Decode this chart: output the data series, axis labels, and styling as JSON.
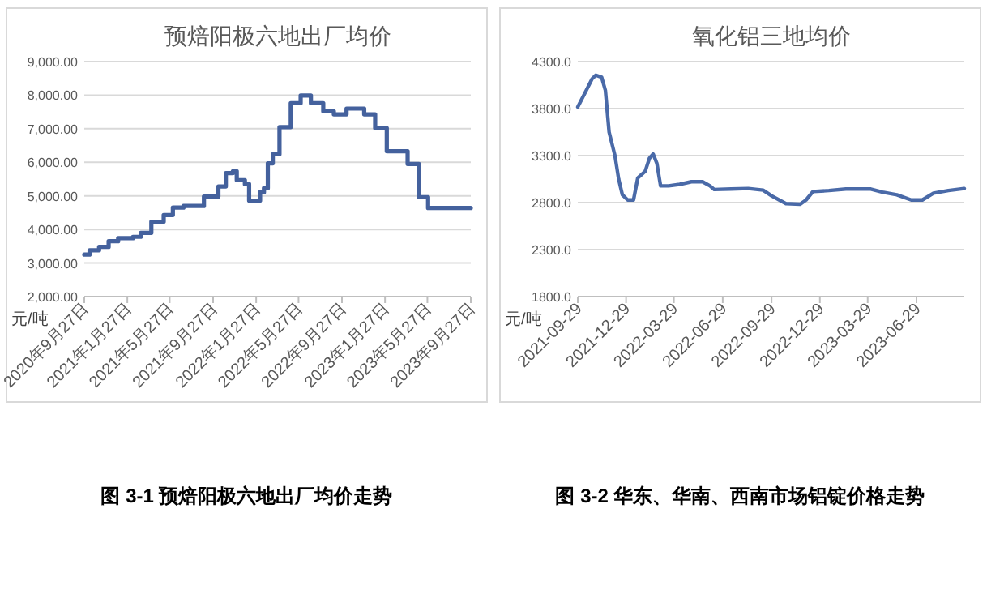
{
  "chart_data": [
    {
      "type": "step",
      "title": "预焙阳极六地出厂均价",
      "ylabel": "元/吨",
      "x": [
        "2020-09-27",
        "2020-10-12",
        "2020-11-08",
        "2020-12-05",
        "2021-01-01",
        "2021-02-12",
        "2021-03-06",
        "2021-04-05",
        "2021-05-10",
        "2021-06-05",
        "2021-07-05",
        "2021-09-01",
        "2021-10-12",
        "2021-11-02",
        "2021-11-22",
        "2021-12-03",
        "2021-12-26",
        "2022-01-07",
        "2022-02-07",
        "2022-02-18",
        "2022-03-01",
        "2022-03-15",
        "2022-04-03",
        "2022-05-05",
        "2022-06-02",
        "2022-07-01",
        "2022-08-05",
        "2022-09-04",
        "2022-10-10",
        "2022-11-29",
        "2022-12-30",
        "2023-02-01",
        "2023-04-01",
        "2023-05-03",
        "2023-05-29",
        "2023-09-27"
      ],
      "series": [
        {
          "color": "#44619d",
          "values": [
            3250,
            3380,
            3480,
            3650,
            3740,
            3780,
            3900,
            4230,
            4430,
            4650,
            4700,
            4980,
            5280,
            5680,
            5730,
            5470,
            5350,
            4860,
            5110,
            5230,
            5970,
            6240,
            7050,
            7760,
            7990,
            7760,
            7520,
            7430,
            7600,
            7430,
            7020,
            6330,
            5950,
            4960,
            4640,
            4640
          ]
        }
      ],
      "xlim": [
        "2020-09-27",
        "2023-09-27"
      ],
      "xticks": [
        {
          "value": "2020-09-27",
          "label": "2020年9月27日"
        },
        {
          "value": "2021-01-27",
          "label": "2021年1月27日"
        },
        {
          "value": "2021-05-27",
          "label": "2021年5月27日"
        },
        {
          "value": "2021-09-27",
          "label": "2021年9月27日"
        },
        {
          "value": "2022-01-27",
          "label": "2022年1月27日"
        },
        {
          "value": "2022-05-27",
          "label": "2022年5月27日"
        },
        {
          "value": "2022-09-27",
          "label": "2022年9月27日"
        },
        {
          "value": "2023-01-27",
          "label": "2023年1月27日"
        },
        {
          "value": "2023-05-27",
          "label": "2023年5月27日"
        },
        {
          "value": "2023-09-27",
          "label": "2023年9月27日"
        }
      ],
      "ylim": [
        2000,
        9000
      ],
      "yticks": [
        {
          "value": 2000,
          "label": "2,000.00"
        },
        {
          "value": 3000,
          "label": "3,000.00"
        },
        {
          "value": 4000,
          "label": "4,000.00"
        },
        {
          "value": 5000,
          "label": "5,000.00"
        },
        {
          "value": 6000,
          "label": "6,000.00"
        },
        {
          "value": 7000,
          "label": "7,000.00"
        },
        {
          "value": 8000,
          "label": "8,000.00"
        },
        {
          "value": 9000,
          "label": "9,000.00"
        }
      ],
      "grid": "y",
      "annotations": [
        "图 3-1 预焙阳极六地出厂均价走势"
      ]
    },
    {
      "type": "line",
      "title": "氧化铝三地均价",
      "ylabel": "元/吨",
      "x": [
        "2021-09-29",
        "2021-10-15",
        "2021-10-26",
        "2021-11-02",
        "2021-11-13",
        "2021-11-20",
        "2021-11-27",
        "2021-12-08",
        "2021-12-15",
        "2021-12-22",
        "2022-01-01",
        "2022-01-12",
        "2022-01-20",
        "2022-02-03",
        "2022-02-11",
        "2022-02-18",
        "2022-02-25",
        "2022-03-04",
        "2022-03-19",
        "2022-04-09",
        "2022-05-01",
        "2022-05-22",
        "2022-06-05",
        "2022-06-13",
        "2022-07-15",
        "2022-08-16",
        "2022-09-13",
        "2022-09-29",
        "2022-10-26",
        "2022-11-22",
        "2022-12-03",
        "2022-12-16",
        "2023-01-15",
        "2023-02-16",
        "2023-04-04",
        "2023-04-26",
        "2023-05-23",
        "2023-06-19",
        "2023-07-10",
        "2023-07-31",
        "2023-08-28",
        "2023-09-27"
      ],
      "series": [
        {
          "color": "#4a6aa8",
          "values": [
            3817,
            3994,
            4117,
            4156,
            4133,
            3994,
            3550,
            3300,
            3050,
            2883,
            2828,
            2828,
            3061,
            3133,
            3272,
            3317,
            3217,
            2978,
            2978,
            2994,
            3022,
            3022,
            2978,
            2939,
            2944,
            2950,
            2933,
            2872,
            2789,
            2783,
            2828,
            2917,
            2928,
            2944,
            2944,
            2911,
            2883,
            2828,
            2828,
            2900,
            2928,
            2950
          ]
        }
      ],
      "xlim": [
        "2021-09-29",
        "2023-09-27"
      ],
      "xticks": [
        "2021-09-29",
        "2021-12-29",
        "2022-03-29",
        "2022-06-29",
        "2022-09-29",
        "2022-12-29",
        "2023-03-29",
        "2023-06-29"
      ],
      "ylim": [
        1800,
        4300
      ],
      "yticks": [
        {
          "value": 1800,
          "label": "1800.0"
        },
        {
          "value": 2300,
          "label": "2300.0"
        },
        {
          "value": 2800,
          "label": "2800.0"
        },
        {
          "value": 3300,
          "label": "3300.0"
        },
        {
          "value": 3800,
          "label": "3800.0"
        },
        {
          "value": 4300,
          "label": "4300.0"
        }
      ],
      "grid": "y",
      "annotations": [
        "图 3-2 华东、华南、西南市场铝锭价格走势"
      ]
    }
  ]
}
